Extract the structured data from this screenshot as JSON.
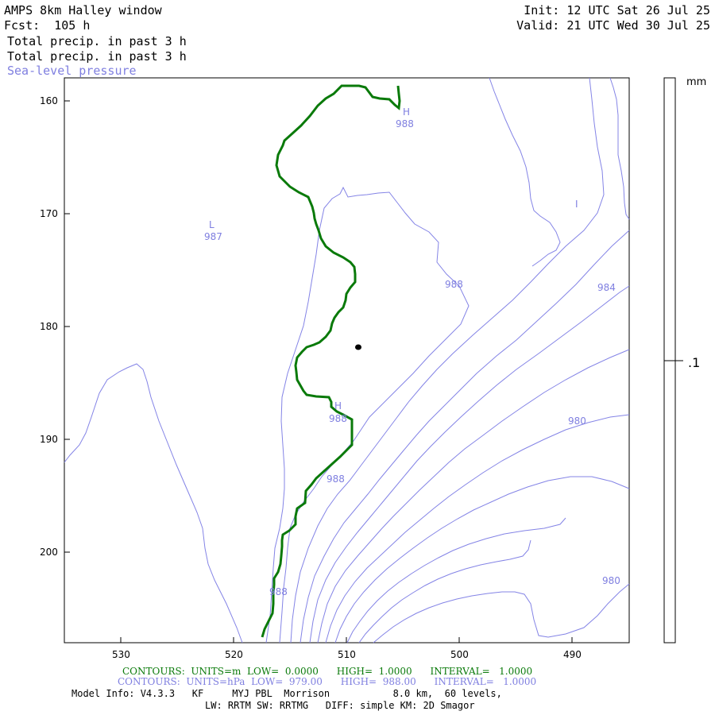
{
  "header": {
    "title": "AMPS 8km Halley window",
    "forecast": "Fcst:  105 h",
    "line1": "Total precip. in past 3 h",
    "line2": "Total precip. in past 3 h",
    "line3": "Sea-level pressure",
    "init": "Init: 12 UTC Sat 26 Jul 25",
    "valid": "Valid: 21 UTC Wed 30 Jul 25"
  },
  "axes": {
    "y_ticks": [
      "160",
      "170",
      "180",
      "190",
      "200"
    ],
    "x_ticks": [
      "530",
      "520",
      "510",
      "500",
      "490"
    ]
  },
  "legend": {
    "unit": "mm",
    "value": ".1"
  },
  "pressure_labels": {
    "L_mark": "L",
    "L_value": "987",
    "H1_mark": "H",
    "H1_value": "988",
    "H2_mark": "H",
    "H2_value": "988",
    "c1": "988",
    "c2": "984",
    "c3": "980",
    "c4": "988",
    "c5": "988",
    "c6": "980",
    "tick_mark": "I"
  },
  "footer": {
    "contours_green": "CONTOURS:  UNITS=m  LOW=  0.0000      HIGH=  1.0000      INTERVAL=   1.0000",
    "contours_blue": "CONTOURS:  UNITS=hPa  LOW=  979.00      HIGH=  988.00      INTERVAL=   1.0000",
    "model_info": "Model Info: V4.3.3   KF     MYJ PBL  Morrison           8.0 km,  60 levels,",
    "physics": "LW: RRTM SW: RRTMG   DIFF: simple KM: 2D Smagor"
  },
  "colors": {
    "precip_contour": "#0a7a0a",
    "pressure_contour": "#7f7fe0",
    "frame": "#000000"
  }
}
